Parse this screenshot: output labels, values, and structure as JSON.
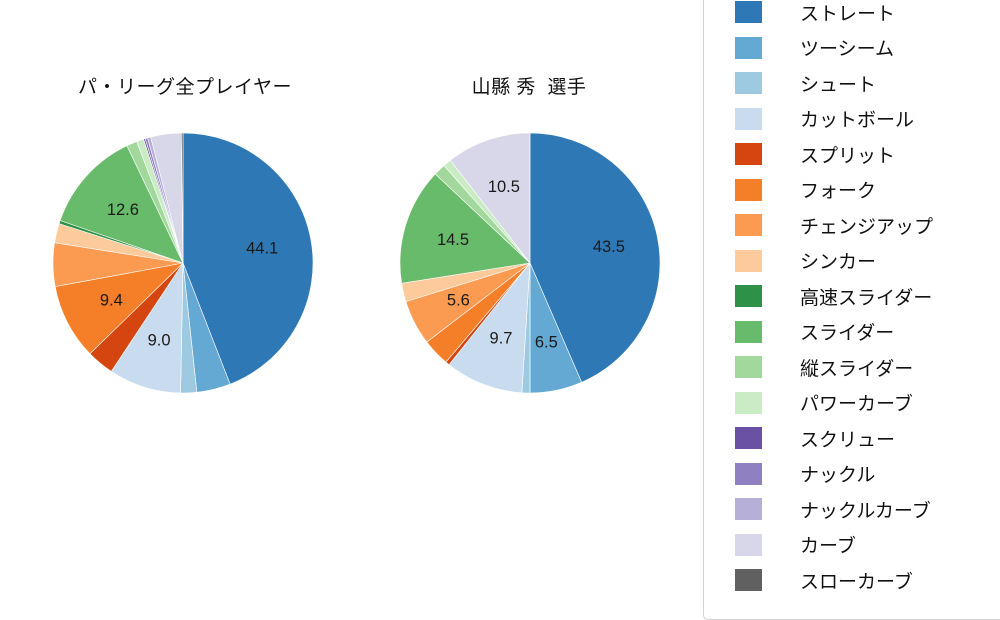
{
  "chart_data": [
    {
      "type": "pie",
      "title": "パ・リーグ全プレイヤー",
      "unit": "percent",
      "start_angle_deg": 90,
      "direction": "clockwise",
      "legend_position": "right",
      "slices": [
        {
          "name": "ストレート",
          "value": 44.1,
          "label": "44.1",
          "color": "#2e79b5"
        },
        {
          "name": "ツーシーム",
          "value": 4.2,
          "label": null,
          "color": "#64a9d3"
        },
        {
          "name": "シュート",
          "value": 2.0,
          "label": null,
          "color": "#9ecae1"
        },
        {
          "name": "カットボール",
          "value": 9.0,
          "label": "9.0",
          "color": "#c9dcef"
        },
        {
          "name": "スプリット",
          "value": 3.4,
          "label": null,
          "color": "#d4450f"
        },
        {
          "name": "フォーク",
          "value": 9.4,
          "label": "9.4",
          "color": "#f57f28"
        },
        {
          "name": "チェンジアップ",
          "value": 5.4,
          "label": null,
          "color": "#fb9a51"
        },
        {
          "name": "シンカー",
          "value": 2.4,
          "label": null,
          "color": "#fdca9b"
        },
        {
          "name": "高速スライダー",
          "value": 0.4,
          "label": null,
          "color": "#2d9147"
        },
        {
          "name": "スライダー",
          "value": 12.6,
          "label": "12.6",
          "color": "#68bb6a"
        },
        {
          "name": "縦スライダー",
          "value": 1.3,
          "label": null,
          "color": "#a3d89d"
        },
        {
          "name": "パワーカーブ",
          "value": 0.9,
          "label": null,
          "color": "#c9ecc4"
        },
        {
          "name": "スクリュー",
          "value": 0.2,
          "label": null,
          "color": "#6a51a3"
        },
        {
          "name": "ナックル",
          "value": 0.3,
          "label": null,
          "color": "#8f80c2"
        },
        {
          "name": "ナックルカーブ",
          "value": 0.4,
          "label": null,
          "color": "#b6b0d8"
        },
        {
          "name": "カーブ",
          "value": 3.8,
          "label": null,
          "color": "#d8d7ea"
        },
        {
          "name": "スローカーブ",
          "value": 0.2,
          "label": null,
          "color": "#606060"
        }
      ]
    },
    {
      "type": "pie",
      "title": "山縣 秀  選手",
      "unit": "percent",
      "start_angle_deg": 90,
      "direction": "clockwise",
      "legend_position": "right",
      "slices": [
        {
          "name": "ストレート",
          "value": 43.5,
          "label": "43.5",
          "color": "#2e79b5"
        },
        {
          "name": "ツーシーム",
          "value": 6.5,
          "label": "6.5",
          "color": "#64a9d3"
        },
        {
          "name": "シュート",
          "value": 1.0,
          "label": null,
          "color": "#9ecae1"
        },
        {
          "name": "カットボール",
          "value": 9.7,
          "label": "9.7",
          "color": "#c9dcef"
        },
        {
          "name": "スプリット",
          "value": 0.5,
          "label": null,
          "color": "#d4450f"
        },
        {
          "name": "フォーク",
          "value": 3.4,
          "label": null,
          "color": "#f57f28"
        },
        {
          "name": "チェンジアップ",
          "value": 5.6,
          "label": "5.6",
          "color": "#fb9a51"
        },
        {
          "name": "シンカー",
          "value": 2.3,
          "label": null,
          "color": "#fdca9b"
        },
        {
          "name": "高速スライダー",
          "value": 0.0,
          "label": null,
          "color": "#2d9147"
        },
        {
          "name": "スライダー",
          "value": 14.5,
          "label": "14.5",
          "color": "#68bb6a"
        },
        {
          "name": "縦スライダー",
          "value": 1.5,
          "label": null,
          "color": "#a3d89d"
        },
        {
          "name": "パワーカーブ",
          "value": 1.0,
          "label": null,
          "color": "#c9ecc4"
        },
        {
          "name": "スクリュー",
          "value": 0.0,
          "label": null,
          "color": "#6a51a3"
        },
        {
          "name": "ナックル",
          "value": 0.0,
          "label": null,
          "color": "#8f80c2"
        },
        {
          "name": "ナックルカーブ",
          "value": 0.0,
          "label": null,
          "color": "#b6b0d8"
        },
        {
          "name": "カーブ",
          "value": 10.5,
          "label": "10.5",
          "color": "#d8d7ea"
        },
        {
          "name": "スローカーブ",
          "value": 0.0,
          "label": null,
          "color": "#606060"
        }
      ]
    }
  ],
  "legend": {
    "items": [
      {
        "label": "ストレート",
        "color": "#2e79b5"
      },
      {
        "label": "ツーシーム",
        "color": "#64a9d3"
      },
      {
        "label": "シュート",
        "color": "#9ecae1"
      },
      {
        "label": "カットボール",
        "color": "#c9dcef"
      },
      {
        "label": "スプリット",
        "color": "#d4450f"
      },
      {
        "label": "フォーク",
        "color": "#f57f28"
      },
      {
        "label": "チェンジアップ",
        "color": "#fb9a51"
      },
      {
        "label": "シンカー",
        "color": "#fdca9b"
      },
      {
        "label": "高速スライダー",
        "color": "#2d9147"
      },
      {
        "label": "スライダー",
        "color": "#68bb6a"
      },
      {
        "label": "縦スライダー",
        "color": "#a3d89d"
      },
      {
        "label": "パワーカーブ",
        "color": "#c9ecc4"
      },
      {
        "label": "スクリュー",
        "color": "#6a51a3"
      },
      {
        "label": "ナックル",
        "color": "#8f80c2"
      },
      {
        "label": "ナックルカーブ",
        "color": "#b6b0d8"
      },
      {
        "label": "カーブ",
        "color": "#d8d7ea"
      },
      {
        "label": "スローカーブ",
        "color": "#606060"
      }
    ]
  }
}
